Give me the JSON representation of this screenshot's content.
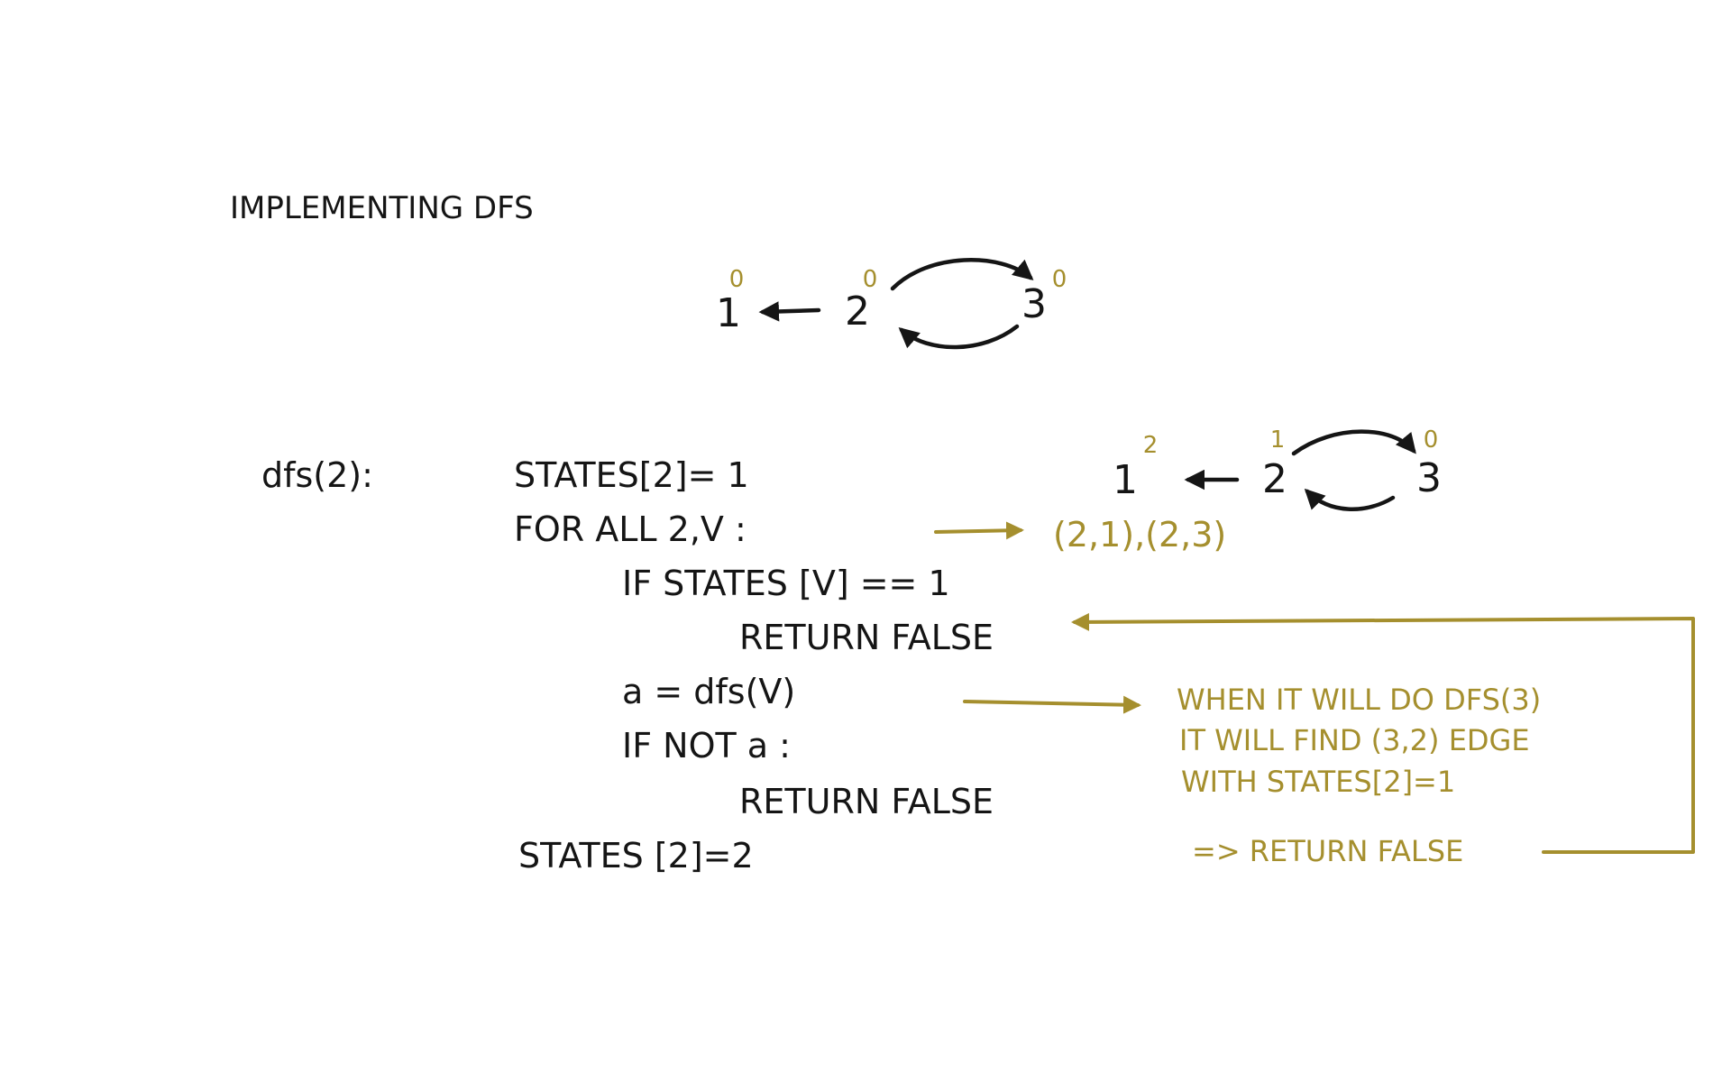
{
  "title": "IMPLEMENTING DFS",
  "graph_top": {
    "nodes": [
      {
        "label": "1",
        "state": "0"
      },
      {
        "label": "2",
        "state": "0"
      },
      {
        "label": "3",
        "state": "0"
      }
    ]
  },
  "graph_right": {
    "nodes": [
      {
        "label": "1",
        "state": "2"
      },
      {
        "label": "2",
        "state": "1"
      },
      {
        "label": "3",
        "state": "0"
      }
    ]
  },
  "code": {
    "signature": "dfs(2):",
    "lines": [
      "STATES[2]= 1",
      "FOR ALL 2,V :",
      "IF  STATES [V] == 1",
      "RETURN  FALSE",
      "a  =  dfs(V)",
      "IF  NOT  a :",
      "RETURN  FALSE",
      "STATES [2]=2"
    ]
  },
  "edges_note": "(2,1),(2,3)",
  "note": {
    "line1": "WHEN  IT WILL  DO  DFS(3)",
    "line2": "IT WILL FIND  (3,2) EDGE",
    "line3": "WITH  STATES[2]=1",
    "line4": "=>  RETURN   FALSE"
  },
  "colors": {
    "ink": "#151515",
    "accent": "#a58f2e",
    "background": "#ffffff"
  }
}
